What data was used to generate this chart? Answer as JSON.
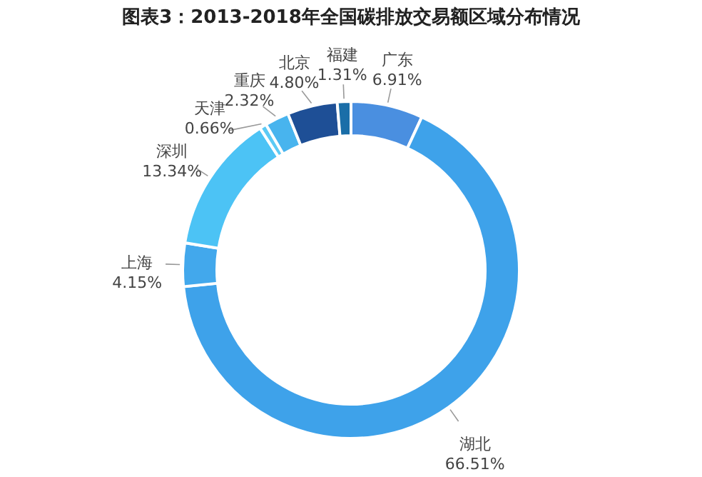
{
  "chart_data": {
    "type": "donut",
    "title": "图表3：2013-2018年全国碳排放交易额区域分布情况",
    "categories": [
      "广东",
      "湖北",
      "上海",
      "深圳",
      "天津",
      "重庆",
      "北京",
      "福建"
    ],
    "values": [
      6.91,
      66.51,
      4.15,
      13.34,
      0.66,
      2.32,
      4.8,
      1.31
    ],
    "value_labels": [
      "6.91%",
      "66.51%",
      "4.15%",
      "13.34%",
      "0.66%",
      "2.32%",
      "4.80%",
      "1.31%"
    ],
    "colors": [
      "#4a8fe0",
      "#3ea2ea",
      "#42a8ec",
      "#4cc3f5",
      "#5ccaf5",
      "#48b4ee",
      "#1e4f96",
      "#1a6ea8"
    ],
    "legend": false
  }
}
